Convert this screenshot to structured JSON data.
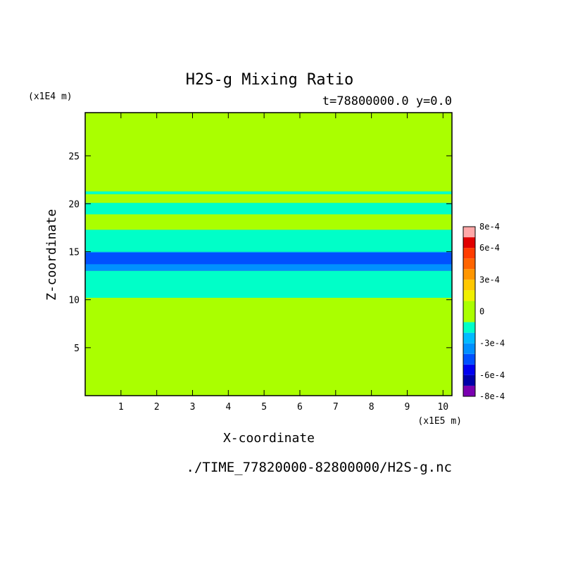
{
  "chart_data": {
    "type": "heatmap",
    "title": "H2S-g Mixing Ratio",
    "subtitle": "t=78800000.0 y=0.0",
    "xlabel": "X-coordinate",
    "ylabel": "Z-coordinate",
    "x_unit": "(x1E5 m)",
    "y_unit": "(x1E4 m)",
    "footer": "./TIME_77820000-82800000/H2S-g.nc",
    "xlim": [
      0,
      10.25
    ],
    "ylim": [
      0,
      29.5
    ],
    "x_ticks": [
      "1",
      "2",
      "3",
      "4",
      "5",
      "6",
      "7",
      "8",
      "9",
      "10"
    ],
    "y_ticks": [
      "5",
      "10",
      "15",
      "20",
      "25"
    ],
    "colorbar": {
      "labels": [
        "8e-4",
        "6e-4",
        "3e-4",
        "0",
        "-3e-4",
        "-6e-4",
        "-8e-4"
      ],
      "label_values": [
        0.0008,
        0.0006,
        0.0003,
        0,
        -0.0003,
        -0.0006,
        -0.0008
      ],
      "levels": [
        -0.0008,
        -0.0007,
        -0.0006,
        -0.0005,
        -0.0004,
        -0.0003,
        -0.0002,
        -0.0001,
        0.0001,
        0.0002,
        0.0003,
        0.0004,
        0.0005,
        0.0006,
        0.0007,
        0.0008
      ],
      "colors": [
        "#7a00b0",
        "#0000a8",
        "#0000f0",
        "#0050ff",
        "#0090ff",
        "#00bbff",
        "#00ffc8",
        "#aaff00",
        "#f0f000",
        "#ffc800",
        "#ff9600",
        "#ff6400",
        "#ff3c00",
        "#e00000",
        "#ffa8a8"
      ]
    },
    "background_value": 0,
    "bands": [
      {
        "z": [
          0,
          10.2
        ],
        "value": 0,
        "note": "near zero"
      },
      {
        "z": [
          10.2,
          13.0
        ],
        "value": -0.00015
      },
      {
        "z": [
          13.0,
          15.0
        ],
        "value": -0.00035
      },
      {
        "z": [
          13.7,
          14.9
        ],
        "value": -0.00045
      },
      {
        "z": [
          15.0,
          17.3
        ],
        "value": -0.00015
      },
      {
        "z": [
          17.3,
          18.9
        ],
        "value": 0
      },
      {
        "z": [
          18.9,
          20.1
        ],
        "value": -0.00015
      },
      {
        "z": [
          20.1,
          21.0
        ],
        "value": 0
      },
      {
        "z": [
          21.0,
          21.3
        ],
        "value": -0.00015
      },
      {
        "z": [
          21.3,
          29.5
        ],
        "value": 0
      }
    ]
  }
}
